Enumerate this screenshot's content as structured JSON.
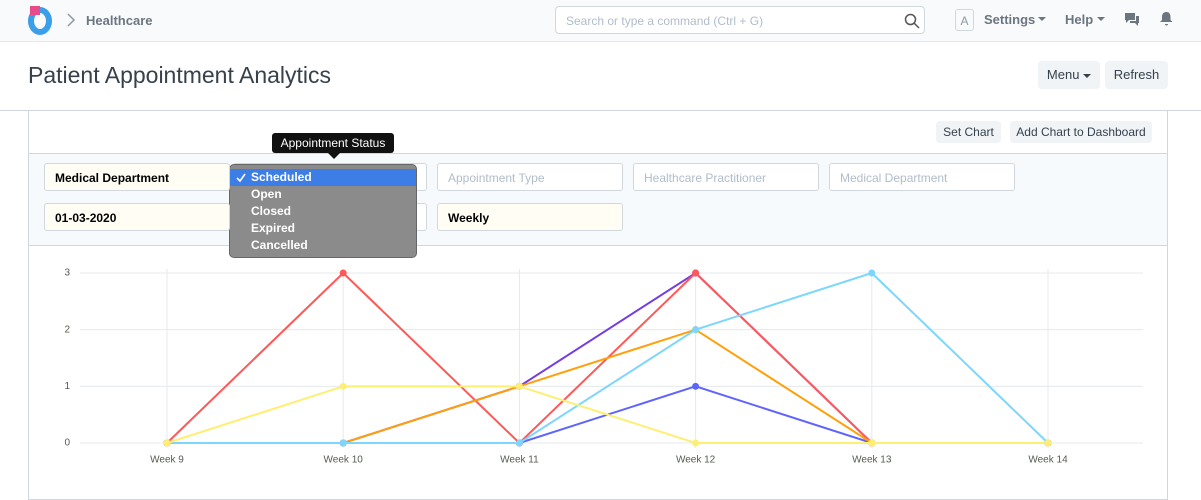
{
  "navbar": {
    "breadcrumb": "Healthcare",
    "search_placeholder": "Search or type a command (Ctrl + G)",
    "avatar": "A",
    "settings": "Settings",
    "help": "Help"
  },
  "page": {
    "title": "Patient Appointment Analytics",
    "menu": "Menu",
    "refresh": "Refresh"
  },
  "chart_card": {
    "set_chart": "Set Chart",
    "add_to_dashboard": "Add Chart to Dashboard"
  },
  "filters": {
    "row1": [
      {
        "text": "Medical Department",
        "filled": true
      },
      {
        "text": "Appointment Type",
        "filled": false
      },
      {
        "text": "Healthcare Practitioner",
        "filled": false
      },
      {
        "text": "Medical Department",
        "filled": false
      }
    ],
    "row2": [
      {
        "text": "01-03-2020",
        "filled": true
      },
      {
        "text": "Weekly",
        "filled": true
      }
    ],
    "tooltip": "Appointment Status",
    "options": [
      "Scheduled",
      "Open",
      "Closed",
      "Expired",
      "Cancelled"
    ]
  },
  "chart_data": {
    "type": "line",
    "categories": [
      "Week 9",
      "Week 10",
      "Week 11",
      "Week 12",
      "Week 13",
      "Week 14"
    ],
    "ylim": [
      0,
      3
    ],
    "yticks": [
      0,
      1,
      2,
      3
    ],
    "grid": true,
    "series": [
      {
        "color": "#5e64ff",
        "values": [
          0,
          0,
          0,
          1,
          0,
          0
        ]
      },
      {
        "color": "#743ee2",
        "values": [
          0,
          0,
          1,
          3,
          0,
          0
        ]
      },
      {
        "color": "#ff5858",
        "values": [
          0,
          3,
          0,
          3,
          0,
          0
        ]
      },
      {
        "color": "#ffa00a",
        "values": [
          0,
          0,
          1,
          2,
          0,
          0
        ]
      },
      {
        "color": "#7cd6fd",
        "values": [
          0,
          0,
          0,
          2,
          3,
          0
        ]
      },
      {
        "color": "#feef72",
        "values": [
          0,
          1,
          1,
          0,
          0,
          0
        ]
      }
    ]
  }
}
